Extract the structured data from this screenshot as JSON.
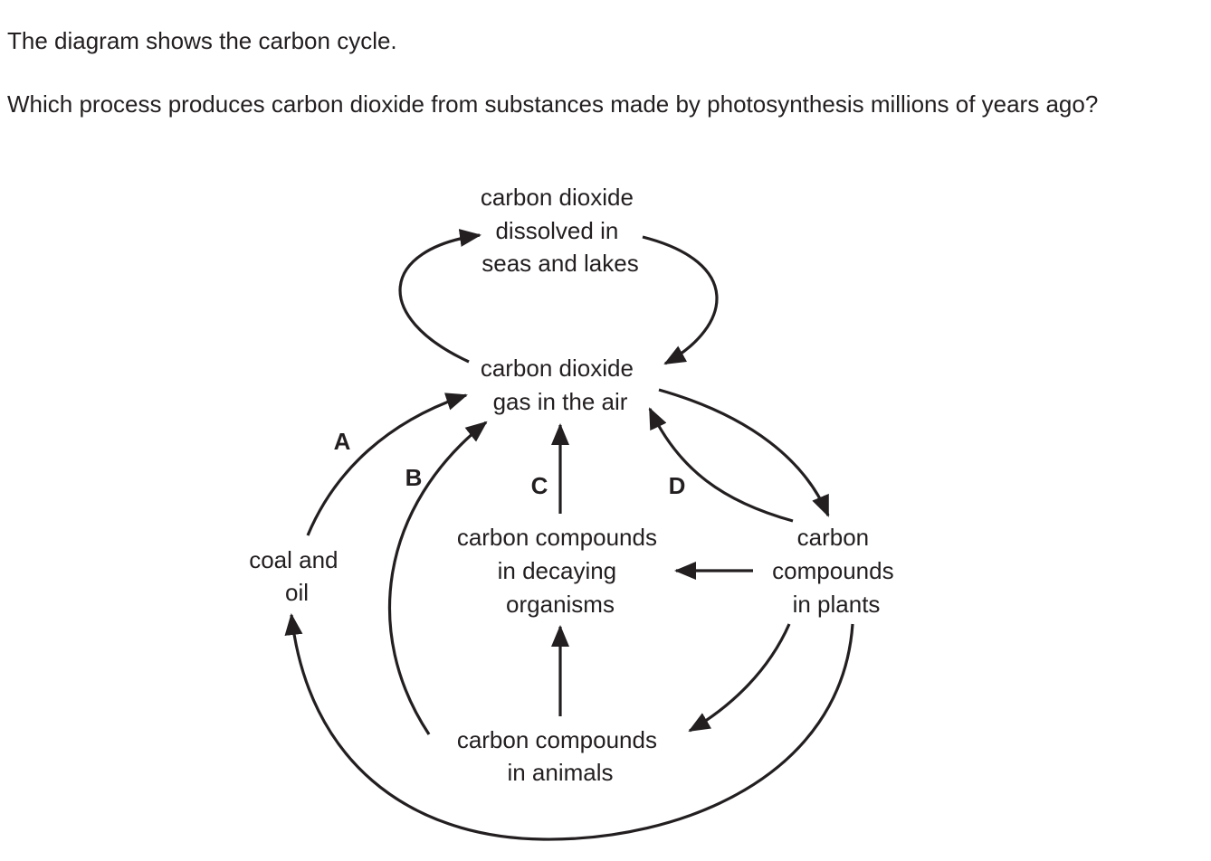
{
  "question": {
    "intro": "The diagram shows the carbon cycle.",
    "prompt": "Which process produces carbon dioxide from substances made by photosynthesis millions of years ago?"
  },
  "nodes": {
    "dissolved": [
      "carbon dioxide",
      "dissolved in",
      "seas and lakes"
    ],
    "air": [
      "carbon dioxide",
      "gas in the air"
    ],
    "coal": [
      "coal and",
      "oil"
    ],
    "decaying": [
      "carbon compounds",
      "in decaying",
      "organisms"
    ],
    "plants": [
      "carbon",
      "compounds",
      "in plants"
    ],
    "animals": [
      "carbon compounds",
      "in animals"
    ]
  },
  "labels": {
    "a": "A",
    "b": "B",
    "c": "C",
    "d": "D"
  },
  "colors": {
    "ink": "#231f20",
    "background": "#ffffff"
  }
}
